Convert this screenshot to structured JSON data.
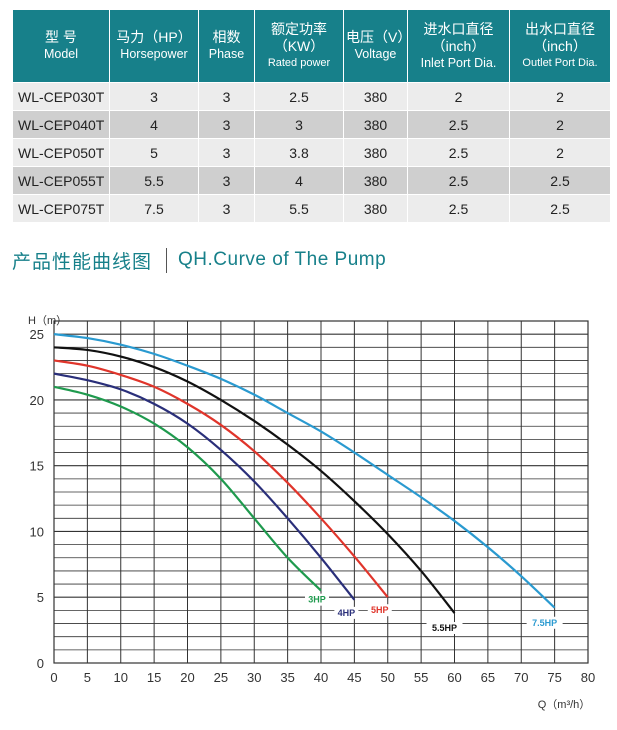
{
  "table": {
    "headers": [
      {
        "zh": "型 号",
        "en": "Model"
      },
      {
        "zh": "马力（HP）",
        "en": "Horsepower"
      },
      {
        "zh": "相数",
        "en": "Phase"
      },
      {
        "zh": "额定功率",
        "zh2": "（KW）",
        "en": "Rated power"
      },
      {
        "zh": "电压（V）",
        "en": "Voltage"
      },
      {
        "zh": "进水口直径",
        "zh2": "（inch）",
        "en": "Inlet Port Dia."
      },
      {
        "zh": "出水口直径",
        "zh2": "（inch）",
        "en": "Outlet Port Dia."
      }
    ],
    "rows": [
      [
        "WL-CEP030T",
        "3",
        "3",
        "2.5",
        "380",
        "2",
        "2"
      ],
      [
        "WL-CEP040T",
        "4",
        "3",
        "3",
        "380",
        "2.5",
        "2"
      ],
      [
        "WL-CEP050T",
        "5",
        "3",
        "3.8",
        "380",
        "2.5",
        "2"
      ],
      [
        "WL-CEP055T",
        "5.5",
        "3",
        "4",
        "380",
        "2.5",
        "2.5"
      ],
      [
        "WL-CEP075T",
        "7.5",
        "3",
        "5.5",
        "380",
        "2.5",
        "2.5"
      ]
    ]
  },
  "section": {
    "title_zh": "产品性能曲线图",
    "title_en": "QH.Curve of The Pump"
  },
  "chart_data": {
    "type": "line",
    "ylabel": "H（m）",
    "xlabel": "Q（m³/h）",
    "xlim": [
      0,
      80
    ],
    "ylim": [
      0,
      26
    ],
    "xticks": [
      0,
      5,
      10,
      15,
      20,
      25,
      30,
      35,
      40,
      45,
      50,
      55,
      60,
      65,
      70,
      75,
      80
    ],
    "yticks": [
      0,
      5,
      10,
      15,
      20,
      25
    ],
    "grid": true,
    "series": [
      {
        "name": "3HP",
        "color": "#1f9a4e",
        "x": [
          0,
          5,
          10,
          15,
          20,
          25,
          30,
          35,
          40
        ],
        "y": [
          21,
          20.4,
          19.5,
          18.2,
          16.4,
          14.0,
          11.0,
          8.0,
          5.5
        ]
      },
      {
        "name": "4HP",
        "color": "#2a2f7a",
        "x": [
          0,
          5,
          10,
          15,
          20,
          25,
          30,
          35,
          40,
          45
        ],
        "y": [
          22,
          21.5,
          20.8,
          19.7,
          18.2,
          16.2,
          13.8,
          11.0,
          8.0,
          4.8
        ]
      },
      {
        "name": "5HP",
        "color": "#e0352b",
        "x": [
          0,
          5,
          10,
          15,
          20,
          25,
          30,
          35,
          40,
          45,
          50
        ],
        "y": [
          23,
          22.6,
          21.9,
          21.0,
          19.7,
          18.1,
          16.1,
          13.7,
          11.0,
          8.1,
          5.0
        ]
      },
      {
        "name": "5.5HP",
        "color": "#111111",
        "x": [
          0,
          5,
          10,
          15,
          20,
          25,
          30,
          35,
          40,
          45,
          50,
          55,
          60
        ],
        "y": [
          24,
          23.8,
          23.3,
          22.5,
          21.4,
          20.0,
          18.4,
          16.6,
          14.6,
          12.3,
          9.8,
          7.0,
          3.8
        ]
      },
      {
        "name": "7.5HP",
        "color": "#2a9ad0",
        "x": [
          0,
          5,
          10,
          15,
          20,
          25,
          30,
          35,
          40,
          45,
          50,
          55,
          60,
          65,
          70,
          75
        ],
        "y": [
          25,
          24.7,
          24.2,
          23.5,
          22.6,
          21.6,
          20.4,
          19.0,
          17.6,
          16.0,
          14.3,
          12.6,
          10.8,
          8.8,
          6.6,
          4.2
        ]
      }
    ],
    "labels": [
      {
        "series": "3HP",
        "x": 40,
        "y": 5.5,
        "text": "3HP"
      },
      {
        "series": "4HP",
        "x": 45,
        "y": 4.8,
        "text": "4HP"
      },
      {
        "series": "5HP",
        "x": 50,
        "y": 5.0,
        "text": "5HP"
      },
      {
        "series": "5.5HP",
        "x": 60,
        "y": 3.8,
        "text": "5.5HP"
      },
      {
        "series": "7.5HP",
        "x": 75,
        "y": 4.2,
        "text": "7.5HP"
      }
    ]
  }
}
